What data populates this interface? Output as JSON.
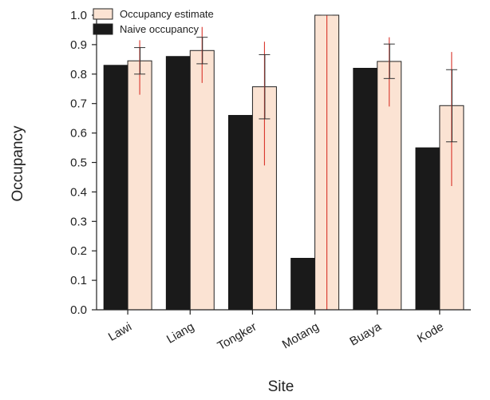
{
  "chart_data": {
    "type": "bar",
    "xlabel": "Site",
    "ylabel": "Occupancy",
    "ylim": [
      0,
      1.0
    ],
    "yticks": [
      "0.0",
      "0.1",
      "0.2",
      "0.3",
      "0.4",
      "0.5",
      "0.6",
      "0.7",
      "0.8",
      "0.9",
      "1.0"
    ],
    "categories": [
      "Lawi",
      "Liang",
      "Tongker",
      "Motang",
      "Buaya",
      "Kode"
    ],
    "legend_position": "top-left",
    "series": [
      {
        "name": "Occupancy estimate",
        "color": "#fbe3d3",
        "values": [
          0.845,
          0.88,
          0.757,
          1.0,
          0.843,
          0.693
        ],
        "se_low": [
          0.8,
          0.835,
          0.648,
          1.0,
          0.785,
          0.57
        ],
        "se_high": [
          0.89,
          0.925,
          0.866,
          1.0,
          0.902,
          0.815
        ],
        "ci_low": [
          0.73,
          0.77,
          0.49,
          0.0,
          0.69,
          0.42
        ],
        "ci_high": [
          0.915,
          0.96,
          0.91,
          1.0,
          0.925,
          0.875
        ]
      },
      {
        "name": "Naive occupancy",
        "color": "#1a1a1a",
        "values": [
          0.83,
          0.86,
          0.66,
          0.175,
          0.82,
          0.55
        ]
      }
    ]
  }
}
